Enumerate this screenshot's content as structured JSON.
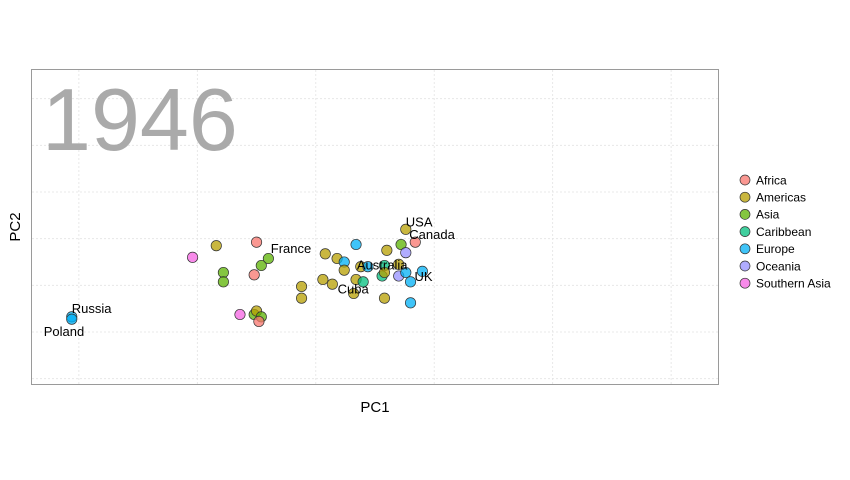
{
  "chart_data": {
    "type": "scatter",
    "title": "",
    "year_label": "1946",
    "xlabel": "PC1",
    "ylabel": "PC2",
    "xlim": [
      -1.1,
      1.8
    ],
    "ylim": [
      -1.35,
      1.35
    ],
    "x_gridlines": [
      -0.9,
      -0.4,
      0.1,
      0.6,
      1.1,
      1.6
    ],
    "y_gridlines": [
      -1.3,
      -0.9,
      -0.5,
      -0.1,
      0.3,
      0.7,
      1.1
    ],
    "tick_labels_visible": false,
    "grid": true,
    "legend": {
      "placement": "right",
      "entries": [
        {
          "name": "Africa",
          "color": "#F8766D"
        },
        {
          "name": "Americas",
          "color": "#B79F00"
        },
        {
          "name": "Asia",
          "color": "#5BB300"
        },
        {
          "name": "Caribbean",
          "color": "#00BF7D"
        },
        {
          "name": "Europe",
          "color": "#00B0F6"
        },
        {
          "name": "Oceania",
          "color": "#9590FF"
        },
        {
          "name": "Southern Asia",
          "color": "#F564E3"
        }
      ]
    },
    "points": [
      {
        "x": -0.93,
        "y": -0.77,
        "group": "Europe",
        "label": "Russia"
      },
      {
        "x": -0.93,
        "y": -0.79,
        "group": "Europe",
        "label": "Poland"
      },
      {
        "x": -0.42,
        "y": -0.26,
        "group": "Southern Asia"
      },
      {
        "x": -0.32,
        "y": -0.16,
        "group": "Americas"
      },
      {
        "x": -0.29,
        "y": -0.39,
        "group": "Asia"
      },
      {
        "x": -0.29,
        "y": -0.47,
        "group": "Asia"
      },
      {
        "x": -0.22,
        "y": -0.75,
        "group": "Southern Asia"
      },
      {
        "x": -0.16,
        "y": -0.41,
        "group": "Africa"
      },
      {
        "x": -0.15,
        "y": -0.13,
        "group": "Africa"
      },
      {
        "x": -0.13,
        "y": -0.33,
        "group": "Asia"
      },
      {
        "x": -0.1,
        "y": -0.27,
        "group": "Asia"
      },
      {
        "x": -0.16,
        "y": -0.75,
        "group": "Asia"
      },
      {
        "x": -0.15,
        "y": -0.72,
        "group": "Americas"
      },
      {
        "x": -0.13,
        "y": -0.77,
        "group": "Asia"
      },
      {
        "x": -0.14,
        "y": -0.81,
        "group": "Africa"
      },
      {
        "x": 0.04,
        "y": -0.51,
        "group": "Americas"
      },
      {
        "x": 0.04,
        "y": -0.61,
        "group": "Americas"
      },
      {
        "x": 0.13,
        "y": -0.45,
        "group": "Americas"
      },
      {
        "x": 0.17,
        "y": -0.49,
        "group": "Americas"
      },
      {
        "x": 0.14,
        "y": -0.23,
        "group": "Americas",
        "label": "France"
      },
      {
        "x": 0.19,
        "y": -0.27,
        "group": "Americas"
      },
      {
        "x": 0.22,
        "y": -0.3,
        "group": "Europe"
      },
      {
        "x": 0.22,
        "y": -0.37,
        "group": "Americas"
      },
      {
        "x": 0.26,
        "y": -0.57,
        "group": "Americas",
        "label": "Cuba"
      },
      {
        "x": 0.27,
        "y": -0.15,
        "group": "Europe"
      },
      {
        "x": 0.27,
        "y": -0.45,
        "group": "Americas"
      },
      {
        "x": 0.29,
        "y": -0.34,
        "group": "Americas"
      },
      {
        "x": 0.3,
        "y": -0.47,
        "group": "Caribbean"
      },
      {
        "x": 0.32,
        "y": -0.34,
        "group": "Europe",
        "label": "Australia"
      },
      {
        "x": 0.38,
        "y": -0.42,
        "group": "Caribbean"
      },
      {
        "x": 0.39,
        "y": -0.33,
        "group": "Caribbean"
      },
      {
        "x": 0.39,
        "y": -0.39,
        "group": "Americas"
      },
      {
        "x": 0.39,
        "y": -0.61,
        "group": "Americas"
      },
      {
        "x": 0.4,
        "y": -0.2,
        "group": "Americas"
      },
      {
        "x": 0.45,
        "y": -0.32,
        "group": "Americas"
      },
      {
        "x": 0.45,
        "y": -0.42,
        "group": "Oceania"
      },
      {
        "x": 0.46,
        "y": -0.15,
        "group": "Asia"
      },
      {
        "x": 0.48,
        "y": -0.39,
        "group": "Europe"
      },
      {
        "x": 0.48,
        "y": -0.02,
        "group": "Americas",
        "label": "USA"
      },
      {
        "x": 0.48,
        "y": -0.22,
        "group": "Oceania"
      },
      {
        "x": 0.5,
        "y": -0.47,
        "group": "Europe",
        "label": "UK"
      },
      {
        "x": 0.5,
        "y": -0.65,
        "group": "Europe"
      },
      {
        "x": 0.52,
        "y": -0.13,
        "group": "Africa",
        "label": "Canada"
      },
      {
        "x": 0.55,
        "y": -0.38,
        "group": "Europe"
      }
    ]
  }
}
